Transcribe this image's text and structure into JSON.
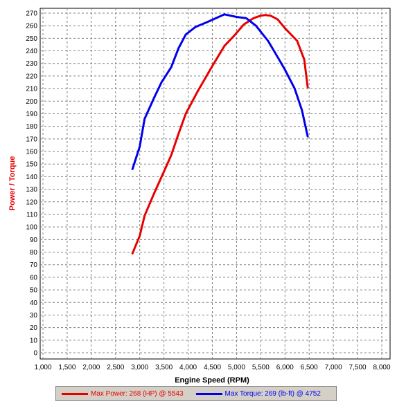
{
  "chart_data": {
    "type": "line",
    "xlabel": "Engine Speed (RPM)",
    "ylabel": "Power / Torque",
    "xlim": [
      1000,
      8000
    ],
    "ylim": [
      0,
      270
    ],
    "grid": true,
    "legend_placement": "bottom",
    "x_ticks": [
      "1,000",
      "1,500",
      "2,000",
      "2,500",
      "3,000",
      "3,500",
      "4,000",
      "4,500",
      "5,000",
      "5,500",
      "6,000",
      "6,500",
      "7,000",
      "7,500",
      "8,000"
    ],
    "y_ticks": [
      "0",
      "10",
      "20",
      "30",
      "40",
      "50",
      "60",
      "70",
      "80",
      "90",
      "100",
      "110",
      "120",
      "130",
      "140",
      "150",
      "160",
      "170",
      "180",
      "190",
      "200",
      "210",
      "220",
      "230",
      "240",
      "250",
      "260",
      "270"
    ],
    "series": [
      {
        "name": "Max Power: 268 (HP) @ 5543",
        "color": "#e80000",
        "x": [
          2850,
          3000,
          3100,
          3300,
          3500,
          3650,
          3800,
          3950,
          4200,
          4500,
          4750,
          4950,
          5150,
          5350,
          5500,
          5600,
          5700,
          5850,
          6000,
          6250,
          6400,
          6470
        ],
        "y": [
          79,
          93,
          109,
          127,
          144,
          157,
          174,
          190,
          208,
          228,
          244,
          252,
          261,
          266,
          268,
          268.5,
          268,
          265,
          258,
          248,
          233,
          211
        ]
      },
      {
        "name": "Max Torque: 269 (lb-ft) @ 4752",
        "color": "#0000ee",
        "x": [
          2850,
          3000,
          3100,
          3300,
          3450,
          3650,
          3800,
          3950,
          4150,
          4400,
          4750,
          5000,
          5200,
          5400,
          5650,
          5850,
          6000,
          6200,
          6350,
          6470
        ],
        "y": [
          146,
          164,
          186,
          203,
          215,
          227,
          242,
          253,
          259,
          263,
          269,
          267,
          266,
          260,
          248,
          235,
          225,
          210,
          193,
          172
        ]
      }
    ]
  }
}
